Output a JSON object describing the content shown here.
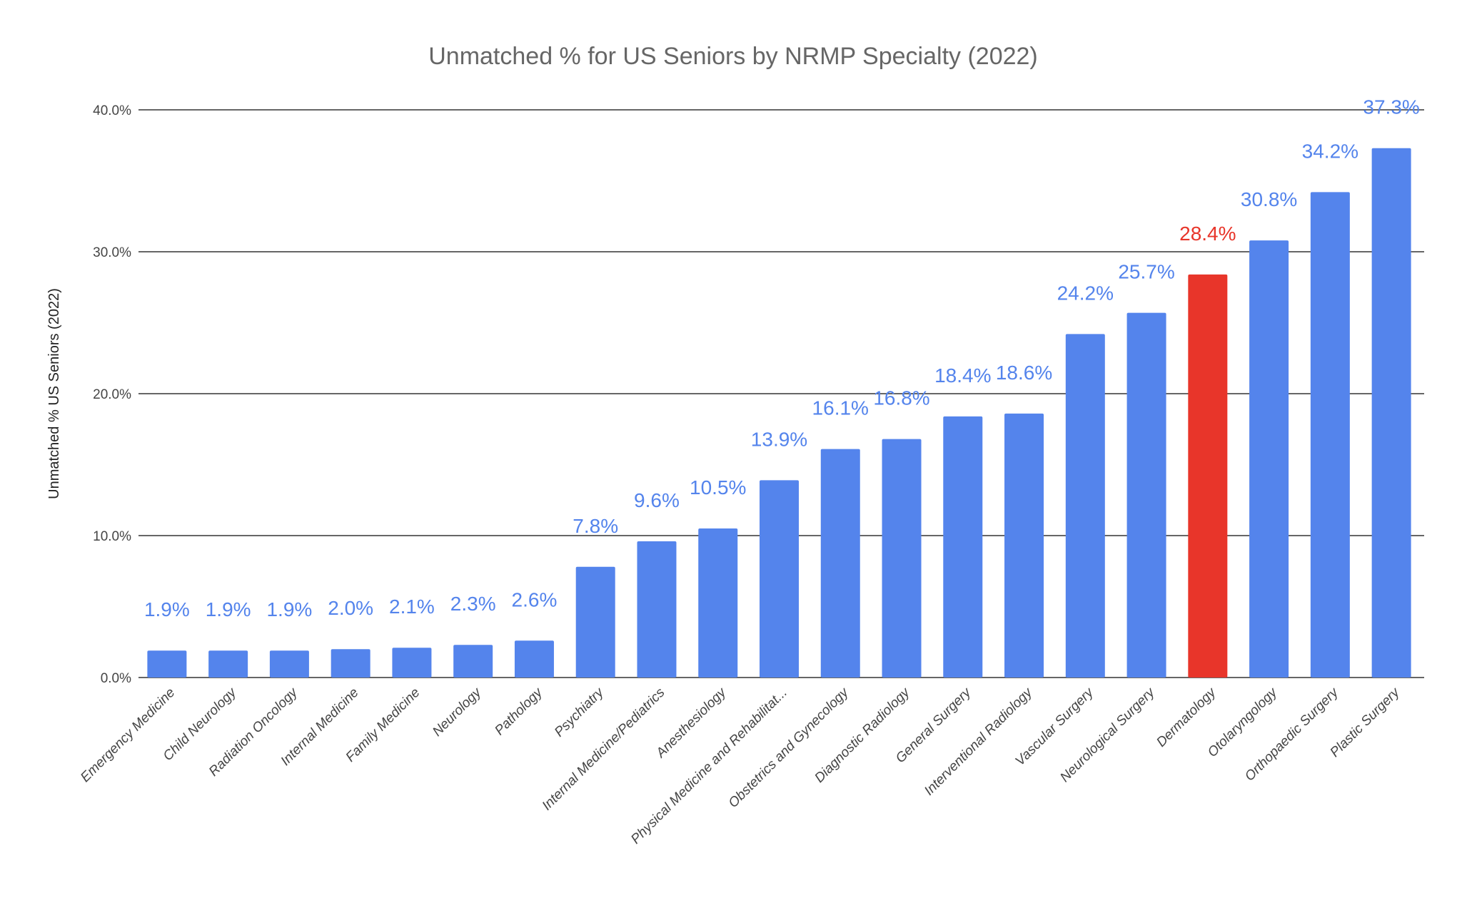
{
  "chart_data": {
    "type": "bar",
    "title": "Unmatched % for US Seniors by NRMP Specialty (2022)",
    "xlabel": "",
    "ylabel": "Unmatched % US Seniors (2022)",
    "ylim": [
      0,
      40
    ],
    "yticks": [
      "0.0%",
      "10.0%",
      "20.0%",
      "30.0%",
      "40.0%"
    ],
    "grid": true,
    "categories": [
      "Emergency Medicine",
      "Child Neurology",
      "Radiation Oncology",
      "Internal Medicine",
      "Family Medicine",
      "Neurology",
      "Pathology",
      "Psychiatry",
      "Internal Medicine/Pediatrics",
      "Anesthesiology",
      "Physical Medicine and Rehabilitat...",
      "Obstetrics and Gynecology",
      "Diagnostic Radiology",
      "General Surgery",
      "Interventional Radiology",
      "Vascular Surgery",
      "Neurological Surgery",
      "Dermatology",
      "Otolaryngology",
      "Orthopaedic Surgery",
      "Plastic Surgery"
    ],
    "values": [
      1.9,
      1.9,
      1.9,
      2.0,
      2.1,
      2.3,
      2.6,
      7.8,
      9.6,
      10.5,
      13.9,
      16.1,
      16.8,
      18.4,
      18.6,
      24.2,
      25.7,
      28.4,
      30.8,
      34.2,
      37.3
    ],
    "data_labels": [
      "1.9%",
      "1.9%",
      "1.9%",
      "2.0%",
      "2.1%",
      "2.3%",
      "2.6%",
      "7.8%",
      "9.6%",
      "10.5%",
      "13.9%",
      "16.1%",
      "16.8%",
      "18.4%",
      "18.6%",
      "24.2%",
      "25.7%",
      "28.4%",
      "30.8%",
      "34.2%",
      "37.3%"
    ],
    "colors": {
      "default": "#5484EC",
      "highlight": "#E8352A",
      "highlight_category": "Dermatology"
    }
  }
}
